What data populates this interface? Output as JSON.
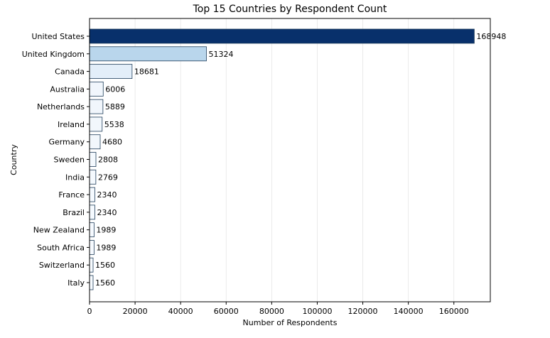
{
  "chart_data": {
    "type": "bar",
    "orientation": "horizontal",
    "title": "Top 15 Countries by Respondent Count",
    "xlabel": "Number of Respondents",
    "ylabel": "Country",
    "xlim": [
      0,
      176000
    ],
    "xticks": [
      0,
      20000,
      40000,
      60000,
      80000,
      100000,
      120000,
      140000,
      160000
    ],
    "grid": "vertical",
    "categories": [
      "United States",
      "United Kingdom",
      "Canada",
      "Australia",
      "Netherlands",
      "Ireland",
      "Germany",
      "Sweden",
      "India",
      "France",
      "Brazil",
      "New Zealand",
      "South Africa",
      "Switzerland",
      "Italy"
    ],
    "values": [
      168948,
      51324,
      18681,
      6006,
      5889,
      5538,
      4680,
      2808,
      2769,
      2340,
      2340,
      1989,
      1989,
      1560,
      1560
    ],
    "colors": [
      "#08306b",
      "#b9d6ec",
      "#e3eef9",
      "#f1f6fc",
      "#f1f6fc",
      "#f2f7fc",
      "#f2f7fc",
      "#f4f9fe",
      "#f4f9fe",
      "#f5faff",
      "#f5faff",
      "#f6faff",
      "#f6faff",
      "#f7fbff",
      "#f7fbff"
    ]
  }
}
